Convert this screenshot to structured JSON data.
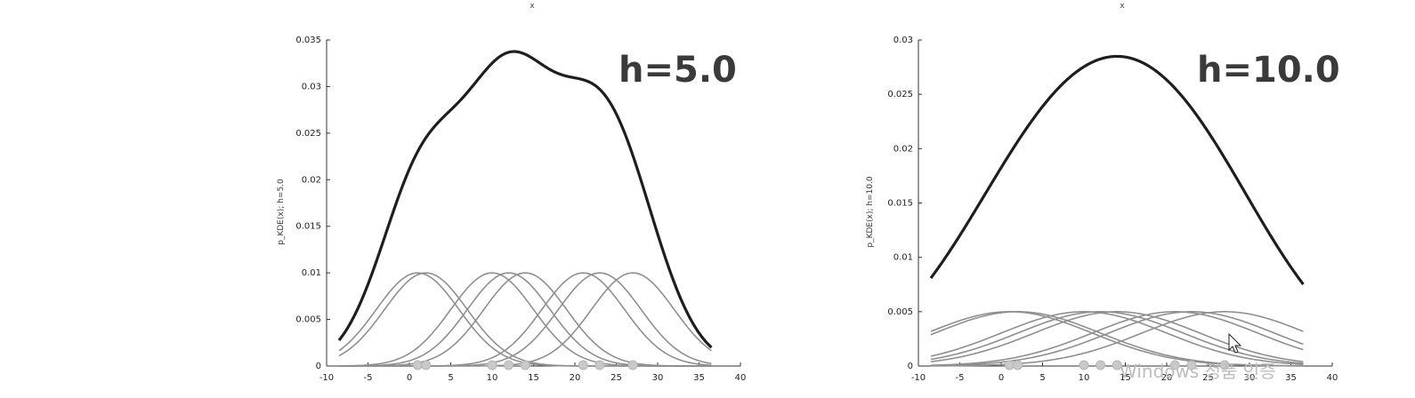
{
  "chart_data": [
    {
      "type": "line",
      "id": "h5",
      "title": "h=5.0",
      "top_label": "x",
      "ylabel": "p_KDE(x); h=5.0",
      "xlim": [
        -10,
        40
      ],
      "ylim": [
        0,
        0.035
      ],
      "x_ticks": [
        -10,
        -5,
        0,
        5,
        10,
        15,
        20,
        25,
        30,
        35,
        40
      ],
      "y_ticks": [
        0,
        0.005,
        0.01,
        0.015,
        0.02,
        0.025,
        0.03,
        0.035
      ],
      "y_tick_labels": [
        "0",
        "0.005",
        "0.01",
        "0.015",
        "0.02",
        "0.025",
        "0.03",
        "0.035"
      ],
      "bandwidth": 5.0,
      "kernel_peak": 0.01,
      "data_points": [
        1,
        2,
        10,
        12,
        14,
        21,
        23,
        27
      ],
      "x_range": [
        -8.5,
        36.5
      ],
      "series": [
        {
          "name": "kde",
          "role": "sum",
          "color": "#1e1e1e"
        },
        {
          "name": "kernels",
          "role": "kernel",
          "color": "#8f8f8f"
        }
      ]
    },
    {
      "type": "line",
      "id": "h10",
      "title": "h=10.0",
      "top_label": "x",
      "ylabel": "p_KDE(x); h=10.0",
      "xlim": [
        -10,
        40
      ],
      "ylim": [
        0,
        0.03
      ],
      "x_ticks": [
        -10,
        -5,
        0,
        5,
        10,
        15,
        20,
        25,
        30,
        35,
        40
      ],
      "y_ticks": [
        0,
        0.005,
        0.01,
        0.015,
        0.02,
        0.025,
        0.03
      ],
      "y_tick_labels": [
        "0",
        "0.005",
        "0.01",
        "0.015",
        "0.02",
        "0.025",
        "0.03"
      ],
      "bandwidth": 10.0,
      "kernel_peak": 0.005,
      "data_points": [
        1,
        2,
        10,
        12,
        14,
        21,
        23,
        27
      ],
      "x_range": [
        -8.5,
        36.5
      ],
      "series": [
        {
          "name": "kde",
          "role": "sum",
          "color": "#1e1e1e"
        },
        {
          "name": "kernels",
          "role": "kernel",
          "color": "#8f8f8f"
        }
      ]
    }
  ],
  "overlay": {
    "text": "Windows 정품 인증"
  }
}
